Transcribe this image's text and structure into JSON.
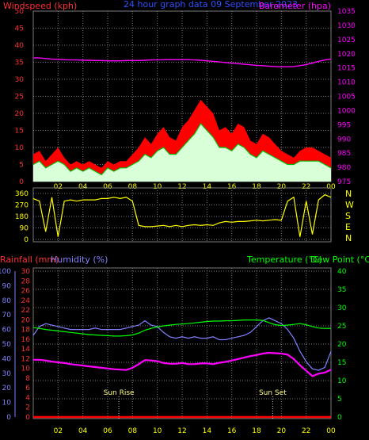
{
  "header": {
    "windspeed_label": "Windspeed (kph)",
    "subtitle": "24 hour graph data  09 September 2023",
    "barometer_label": "Barometer (hpa)"
  },
  "footer_labels": {
    "rainfall": "Rainfall (mm)",
    "humidity": "Humidity (%)",
    "temperature": "Temperature (°C)",
    "dewpoint": "Dew Point (°C)",
    "sun_rise": "Sun Rise",
    "sun_set": "Sun Set"
  },
  "colors": {
    "wind_gust": "#ff0000",
    "wind_avg": "#00c000",
    "wind_fill": "#ffffff",
    "barometer": "#ff00ff",
    "direction": "#ffff00",
    "rainfall": "#ff0000",
    "humidity": "#8080ff",
    "temperature": "#00ff00",
    "dewpoint": "#ff00ff",
    "grid": "#7a7a7a",
    "red_axis": "#ff3030",
    "blue_axis": "#8080ff",
    "green_axis": "#00ff00",
    "magenta_axis": "#ff00ff",
    "yellow_axis": "#ffff00"
  },
  "chart_data": [
    {
      "type": "line",
      "x_tick_labels": [
        "02",
        "04",
        "06",
        "08",
        "10",
        "12",
        "14",
        "16",
        "18",
        "20",
        "22",
        "00"
      ],
      "x_hours": [
        0,
        0.5,
        1,
        1.5,
        2,
        2.5,
        3,
        3.5,
        4,
        4.5,
        5,
        5.5,
        6,
        6.5,
        7,
        7.5,
        8,
        8.5,
        9,
        9.5,
        10,
        10.5,
        11,
        11.5,
        12,
        12.5,
        13,
        13.5,
        14,
        14.5,
        15,
        15.5,
        16,
        16.5,
        17,
        17.5,
        18,
        18.5,
        19,
        19.5,
        20,
        20.5,
        21,
        21.5,
        22,
        22.5,
        23,
        23.5,
        24
      ],
      "left_axis": {
        "ticks": [
          0,
          5,
          10,
          15,
          20,
          25,
          30,
          35,
          40,
          45,
          50
        ],
        "ylim": [
          0,
          50
        ]
      },
      "right_axis": {
        "ticks": [
          975,
          980,
          985,
          990,
          995,
          1000,
          1005,
          1010,
          1015,
          1020,
          1025,
          1030,
          1035
        ],
        "ylim": [
          975,
          1035
        ]
      },
      "series": [
        {
          "key": "gust",
          "axis": "left",
          "values": [
            8,
            9,
            6,
            8,
            10,
            7,
            5,
            6,
            5,
            6,
            5,
            4,
            6,
            5,
            6,
            6,
            8,
            10,
            13,
            11,
            14,
            16,
            13,
            12,
            16,
            18,
            21,
            24,
            22,
            20,
            15,
            16,
            14,
            17,
            16,
            12,
            11,
            14,
            13,
            11,
            9,
            8,
            7,
            9,
            10,
            10,
            9,
            8,
            7
          ]
        },
        {
          "key": "average",
          "axis": "left",
          "values": [
            5,
            6,
            4,
            5,
            6,
            5,
            3,
            4,
            3,
            4,
            3,
            2,
            4,
            3,
            4,
            4,
            5,
            6,
            8,
            7,
            9,
            10,
            8,
            8,
            10,
            12,
            14,
            17,
            15,
            13,
            10,
            10,
            9,
            11,
            10,
            8,
            7,
            9,
            8,
            7,
            6,
            5,
            5,
            6,
            6,
            6,
            6,
            5,
            4
          ]
        },
        {
          "key": "barometer",
          "axis": "right",
          "values": [
            1018.5,
            1018.5,
            1018.3,
            1018.1,
            1018.0,
            1017.9,
            1017.8,
            1017.8,
            1017.7,
            1017.7,
            1017.6,
            1017.6,
            1017.5,
            1017.5,
            1017.5,
            1017.6,
            1017.6,
            1017.6,
            1017.7,
            1017.8,
            1017.8,
            1017.9,
            1017.9,
            1017.9,
            1017.9,
            1017.9,
            1017.8,
            1017.7,
            1017.5,
            1017.3,
            1017.1,
            1016.9,
            1016.7,
            1016.5,
            1016.3,
            1016.1,
            1015.9,
            1015.8,
            1015.6,
            1015.5,
            1015.4,
            1015.4,
            1015.5,
            1015.8,
            1016.2,
            1016.7,
            1017.3,
            1017.8,
            1018.1
          ]
        }
      ]
    },
    {
      "type": "line",
      "x_tick_labels": [],
      "x_hours": [
        0,
        0.5,
        1,
        1.5,
        2,
        2.5,
        3,
        3.5,
        4,
        4.5,
        5,
        5.5,
        6,
        6.5,
        7,
        7.5,
        8,
        8.5,
        9,
        9.5,
        10,
        10.5,
        11,
        11.5,
        12,
        12.5,
        13,
        13.5,
        14,
        14.5,
        15,
        15.5,
        16,
        16.5,
        17,
        17.5,
        18,
        18.5,
        19,
        19.5,
        20,
        20.5,
        21,
        21.5,
        22,
        22.5,
        23,
        23.5,
        24
      ],
      "left_axis": {
        "ticks": [
          0,
          90,
          180,
          270,
          360
        ],
        "ylim": [
          0,
          360
        ]
      },
      "right_axis_labels": [
        "N",
        "W",
        "S",
        "E",
        "N"
      ],
      "series": [
        {
          "key": "direction",
          "axis": "left",
          "values": [
            320,
            300,
            60,
            330,
            20,
            300,
            310,
            300,
            310,
            310,
            310,
            320,
            320,
            330,
            320,
            330,
            300,
            110,
            100,
            100,
            105,
            110,
            100,
            110,
            100,
            110,
            115,
            110,
            115,
            110,
            130,
            140,
            135,
            140,
            140,
            145,
            150,
            145,
            150,
            155,
            150,
            300,
            330,
            20,
            300,
            40,
            310,
            350,
            330
          ]
        }
      ]
    },
    {
      "type": "line",
      "x_tick_labels": [
        "02",
        "04",
        "06",
        "08",
        "10",
        "12",
        "14",
        "16",
        "18",
        "20",
        "22",
        "00"
      ],
      "x_hours": [
        0,
        0.5,
        1,
        1.5,
        2,
        2.5,
        3,
        3.5,
        4,
        4.5,
        5,
        5.5,
        6,
        6.5,
        7,
        7.5,
        8,
        8.5,
        9,
        9.5,
        10,
        10.5,
        11,
        11.5,
        12,
        12.5,
        13,
        13.5,
        14,
        14.5,
        15,
        15.5,
        16,
        16.5,
        17,
        17.5,
        18,
        18.5,
        19,
        19.5,
        20,
        20.5,
        21,
        21.5,
        22,
        22.5,
        23,
        23.5,
        24
      ],
      "annotations": [
        {
          "key": "sun_rise",
          "hour": 6.9
        },
        {
          "key": "sun_set",
          "hour": 19.3
        }
      ],
      "axes": {
        "humidity": {
          "ticks": [
            0,
            10,
            20,
            30,
            40,
            50,
            60,
            70,
            80,
            90,
            100
          ],
          "ylim": [
            0,
            100
          ]
        },
        "rainfall": {
          "ticks": [
            0,
            2,
            4,
            6,
            8,
            10,
            12,
            14,
            16,
            18,
            20,
            22,
            24,
            26,
            28,
            30
          ],
          "ylim": [
            0,
            30
          ]
        },
        "temperature": {
          "ticks": [
            0,
            5,
            10,
            15,
            20,
            25,
            30,
            35,
            40
          ],
          "ylim": [
            0,
            40
          ]
        }
      },
      "series": [
        {
          "key": "humidity",
          "axis": "humidity",
          "values": [
            56,
            62,
            64,
            63,
            62,
            61,
            60,
            60,
            60,
            60,
            61,
            60,
            60,
            60,
            60,
            61,
            62,
            63,
            66,
            63,
            62,
            58,
            55,
            54,
            55,
            54,
            55,
            54,
            54,
            55,
            53,
            53,
            54,
            55,
            56,
            58,
            62,
            66,
            68,
            66,
            64,
            60,
            54,
            45,
            38,
            33,
            32,
            34,
            45
          ]
        },
        {
          "key": "rainfall",
          "axis": "rainfall",
          "values": [
            0,
            0,
            0,
            0,
            0,
            0,
            0,
            0,
            0,
            0,
            0,
            0,
            0,
            0,
            0,
            0,
            0,
            0,
            0,
            0,
            0,
            0,
            0,
            0,
            0,
            0,
            0,
            0,
            0,
            0,
            0,
            0,
            0,
            0,
            0,
            0,
            0,
            0,
            0,
            0,
            0,
            0,
            0,
            0,
            0,
            0,
            0,
            0,
            0
          ]
        },
        {
          "key": "temperature",
          "axis": "temperature",
          "values": [
            24.5,
            24.3,
            24.0,
            23.8,
            23.6,
            23.4,
            23.2,
            23.0,
            22.8,
            22.6,
            22.5,
            22.4,
            22.3,
            22.2,
            22.2,
            22.3,
            22.5,
            23.0,
            23.8,
            24.3,
            24.7,
            25.0,
            25.2,
            25.4,
            25.5,
            25.6,
            25.8,
            26.0,
            26.2,
            26.3,
            26.3,
            26.4,
            26.4,
            26.5,
            26.6,
            26.6,
            26.6,
            26.5,
            25.9,
            25.3,
            25.1,
            25.2,
            25.4,
            25.6,
            25.3,
            24.8,
            24.4,
            24.3,
            24.3
          ]
        },
        {
          "key": "dewpoint",
          "axis": "temperature",
          "values": [
            15.7,
            15.7,
            15.5,
            15.2,
            15.0,
            14.8,
            14.5,
            14.3,
            14.1,
            13.9,
            13.7,
            13.5,
            13.3,
            13.1,
            13.0,
            12.9,
            13.5,
            14.5,
            15.6,
            15.5,
            15.3,
            14.8,
            14.6,
            14.6,
            14.8,
            14.5,
            14.5,
            14.7,
            14.7,
            14.5,
            14.9,
            15.1,
            15.5,
            15.9,
            16.3,
            16.7,
            17.0,
            17.4,
            17.6,
            17.5,
            17.4,
            17.1,
            15.9,
            14.2,
            12.7,
            11.2,
            11.9,
            12.2,
            13.0
          ]
        }
      ]
    }
  ]
}
